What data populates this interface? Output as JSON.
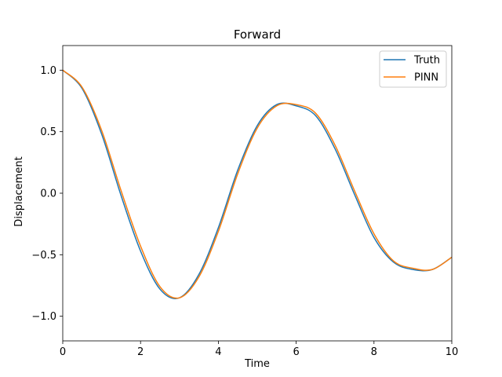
{
  "chart_data": {
    "type": "line",
    "title": "Forward",
    "xlabel": "Time",
    "ylabel": "Displacement",
    "xlim": [
      0,
      10
    ],
    "ylim": [
      -1.2,
      1.2
    ],
    "xticks": [
      0,
      2,
      4,
      6,
      8,
      10
    ],
    "xtick_labels": [
      "0",
      "2",
      "4",
      "6",
      "8",
      "10"
    ],
    "yticks": [
      1.0,
      0.5,
      0.0,
      -0.5,
      -1.0
    ],
    "ytick_labels": [
      "1.0",
      "0.5",
      "0.0",
      "−0.5",
      "−1.0"
    ],
    "grid": false,
    "legend_position": "top-right",
    "x": [
      0,
      0.5,
      1,
      1.5,
      2,
      2.5,
      3,
      3.5,
      4,
      4.5,
      5,
      5.5,
      6,
      6.5,
      7,
      7.5,
      8,
      8.5,
      9,
      9.5,
      10
    ],
    "series": [
      {
        "name": "Truth",
        "color": "#1f77b4",
        "values": [
          1.0,
          0.85,
          0.48,
          -0.02,
          -0.47,
          -0.78,
          -0.85,
          -0.66,
          -0.28,
          0.19,
          0.55,
          0.72,
          0.71,
          0.63,
          0.36,
          -0.01,
          -0.36,
          -0.56,
          -0.62,
          -0.62,
          -0.52
        ]
      },
      {
        "name": "PINN",
        "color": "#ff7f0e",
        "values": [
          1.0,
          0.86,
          0.51,
          0.02,
          -0.43,
          -0.76,
          -0.85,
          -0.68,
          -0.31,
          0.16,
          0.53,
          0.71,
          0.72,
          0.65,
          0.39,
          0.02,
          -0.33,
          -0.55,
          -0.61,
          -0.62,
          -0.52
        ]
      }
    ]
  }
}
